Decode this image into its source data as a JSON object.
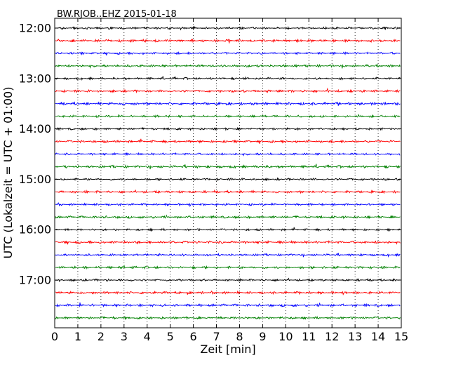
{
  "chart_data": {
    "type": "line",
    "title": "BW.RJOB..EHZ 2015-01-18",
    "xlabel": "Zeit  [min]",
    "ylabel": "UTC (Lokalzeit = UTC + 01:00)",
    "xlim": [
      0,
      15
    ],
    "x_ticks": [
      0,
      1,
      2,
      3,
      4,
      5,
      6,
      7,
      8,
      9,
      10,
      11,
      12,
      13,
      14,
      15
    ],
    "x_tick_labels": [
      "0",
      "1",
      "2",
      "3",
      "4",
      "5",
      "6",
      "7",
      "8",
      "9",
      "10",
      "11",
      "12",
      "13",
      "14",
      "15"
    ],
    "y_tick_labels": [
      "12:00",
      "13:00",
      "14:00",
      "15:00",
      "16:00",
      "17:00"
    ],
    "grid": "vertical dotted lines at each minute",
    "trace_colors": [
      "#000000",
      "#ff0000",
      "#0000ff",
      "#008000"
    ],
    "traces": [
      {
        "start": "12:00",
        "amplitude": 0.5
      },
      {
        "start": "12:15",
        "amplitude": 0.6
      },
      {
        "start": "12:30",
        "amplitude": 0.5
      },
      {
        "start": "12:45",
        "amplitude": 0.55
      },
      {
        "start": "13:00",
        "amplitude": 0.5
      },
      {
        "start": "13:15",
        "amplitude": 0.55
      },
      {
        "start": "13:30",
        "amplitude": 0.6
      },
      {
        "start": "13:45",
        "amplitude": 0.5
      },
      {
        "start": "14:00",
        "amplitude": 0.5
      },
      {
        "start": "14:15",
        "amplitude": 0.55
      },
      {
        "start": "14:30",
        "amplitude": 0.5
      },
      {
        "start": "14:45",
        "amplitude": 0.6
      },
      {
        "start": "15:00",
        "amplitude": 0.5
      },
      {
        "start": "15:15",
        "amplitude": 0.55
      },
      {
        "start": "15:30",
        "amplitude": 0.5
      },
      {
        "start": "15:45",
        "amplitude": 0.55
      },
      {
        "start": "16:00",
        "amplitude": 0.5
      },
      {
        "start": "16:15",
        "amplitude": 0.6
      },
      {
        "start": "16:30",
        "amplitude": 0.5
      },
      {
        "start": "16:45",
        "amplitude": 0.55
      },
      {
        "start": "17:00",
        "amplitude": 0.5
      },
      {
        "start": "17:15",
        "amplitude": 0.55
      },
      {
        "start": "17:30",
        "amplitude": 0.6
      },
      {
        "start": "17:45",
        "amplitude": 0.55
      }
    ]
  }
}
